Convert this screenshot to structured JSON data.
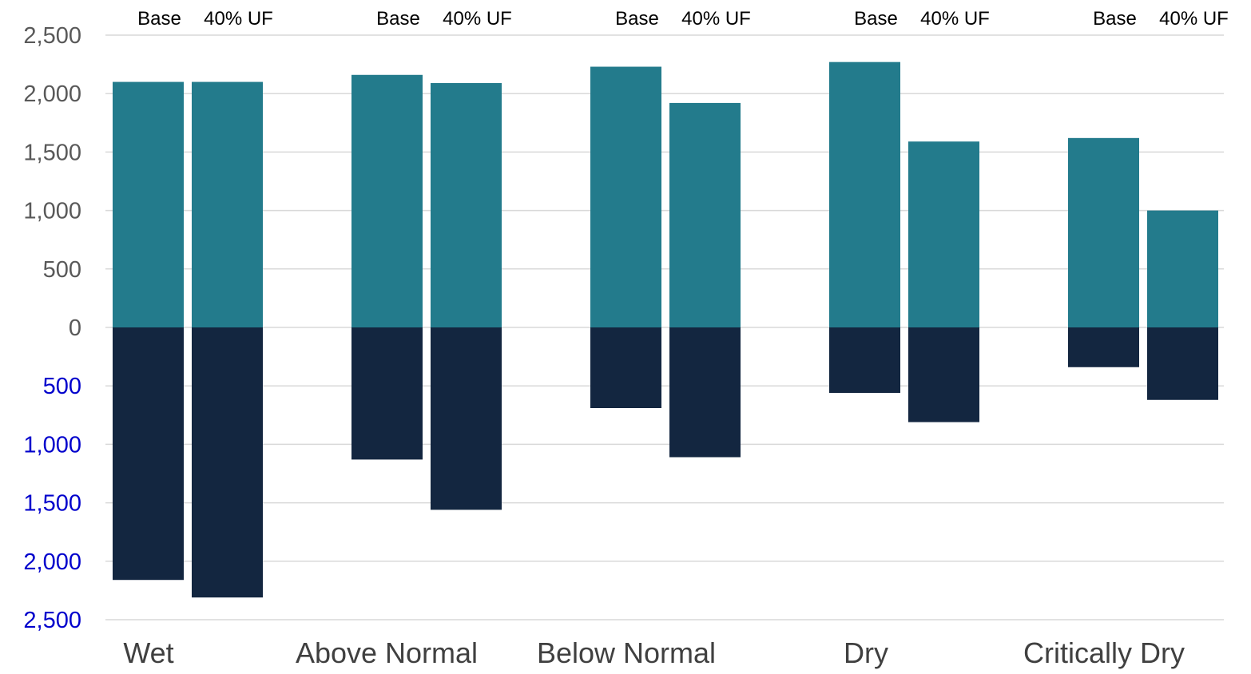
{
  "chart_data": {
    "type": "bar",
    "stacked_diverging": true,
    "categories": [
      "Wet",
      "Above Normal",
      "Below Normal",
      "Dry",
      "Critically Dry"
    ],
    "scenarios": [
      "Base",
      "40% UF"
    ],
    "series": [
      {
        "values_base": [
          2100,
          2160,
          2230,
          2270,
          1620
        ],
        "values_40uf": [
          2100,
          2090,
          1920,
          1590,
          1000
        ]
      },
      {
        "values_base": [
          -2160,
          -1130,
          -690,
          -560,
          -340
        ],
        "values_40uf": [
          -2310,
          -1560,
          -1110,
          -810,
          -620
        ]
      }
    ],
    "ylim": [
      -2500,
      2500
    ],
    "y_ticks": [
      2500,
      2000,
      1500,
      1000,
      500,
      0,
      -500,
      -1000,
      -1500,
      -2000,
      -2500
    ],
    "y_tick_labels": [
      "2,500",
      "2,000",
      "1,500",
      "1,000",
      "500",
      "0",
      "500",
      "1,000",
      "1,500",
      "2,000",
      "2,500"
    ],
    "xlabel": "",
    "ylabel": "",
    "grid": true,
    "legend": "none",
    "colors": {
      "positive": "#237b8c",
      "negative": "#132640",
      "positive_tick_text": "#595959",
      "negative_tick_text": "#0000cc",
      "grid": "#d9d9d9"
    }
  }
}
